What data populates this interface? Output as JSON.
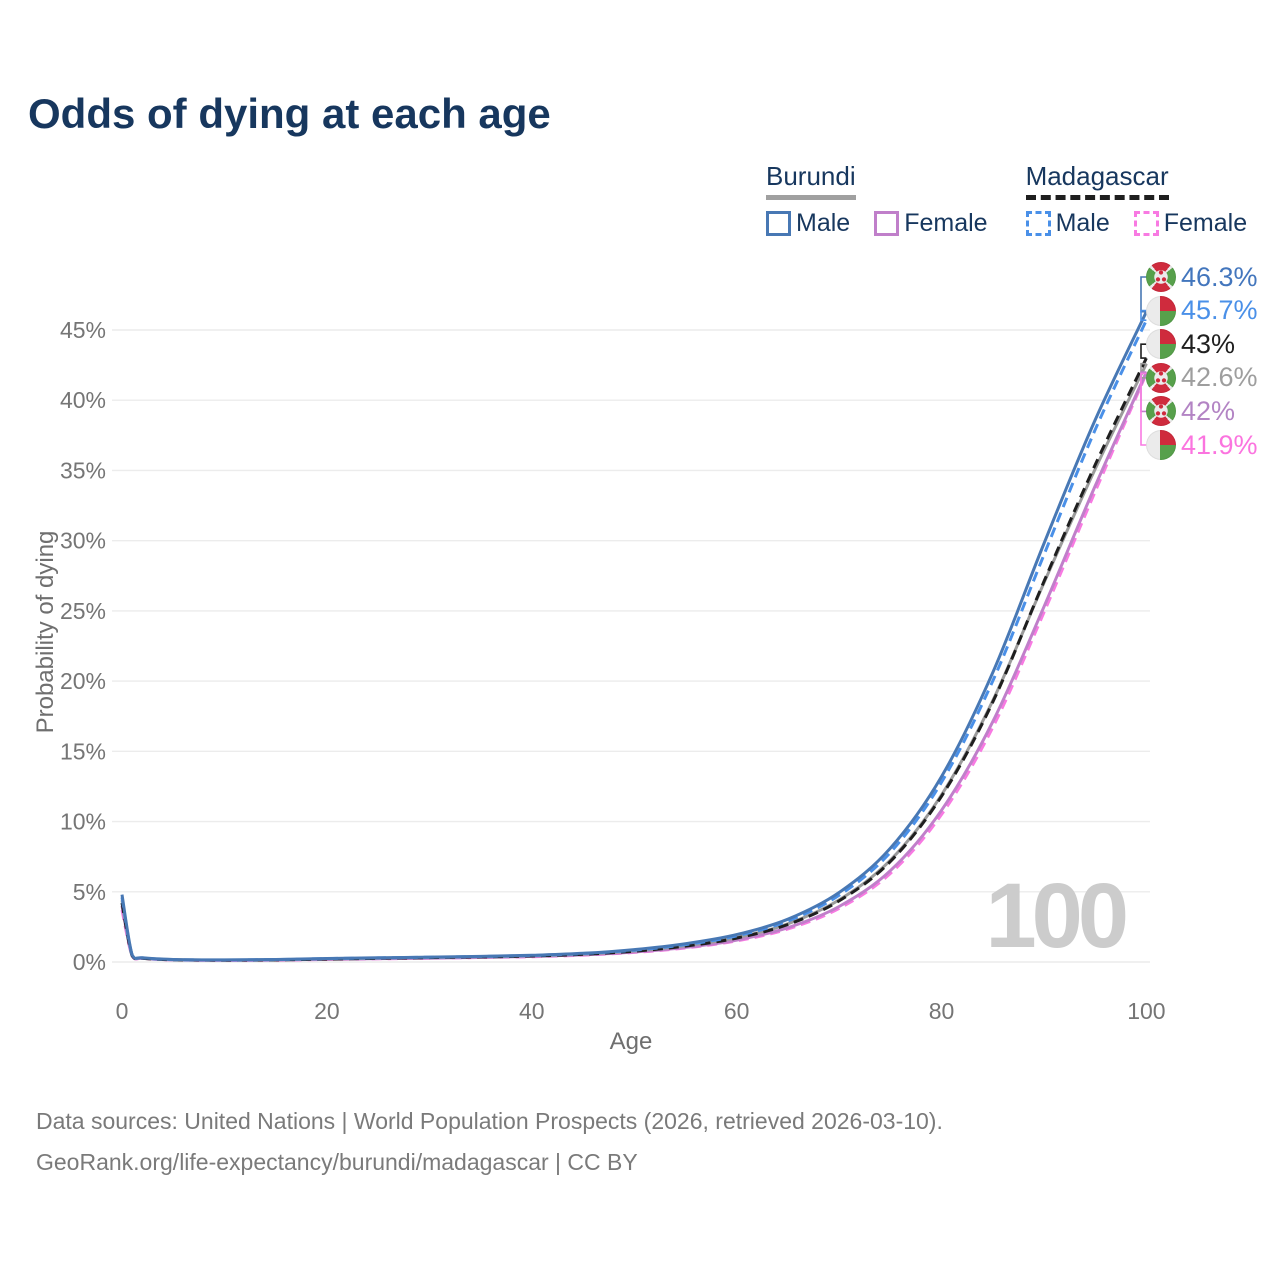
{
  "title": "Odds of dying at each age",
  "legend": {
    "groups": [
      {
        "country": "Burundi",
        "style": "solid",
        "items": [
          {
            "label": "Male",
            "color": "#4878b4"
          },
          {
            "label": "Female",
            "color": "#c07fca"
          }
        ]
      },
      {
        "country": "Madagascar",
        "style": "dashed",
        "items": [
          {
            "label": "Male",
            "color": "#4a90e8"
          },
          {
            "label": "Female",
            "color": "#f87ae2"
          }
        ]
      }
    ]
  },
  "chart_data": {
    "type": "line",
    "title": "Odds of dying at each age",
    "xlabel": "Age",
    "ylabel": "Probability of dying",
    "x_ticks": [
      0,
      20,
      40,
      60,
      80,
      100
    ],
    "y_ticks": [
      0,
      5,
      10,
      15,
      20,
      25,
      30,
      35,
      40,
      45
    ],
    "y_tick_suffix": "%",
    "xlim": [
      0,
      100
    ],
    "ylim": [
      0,
      47.5
    ],
    "grid": true,
    "legend_position": "top-right",
    "age_indicator": "100",
    "x": [
      0,
      1,
      2,
      5,
      10,
      15,
      20,
      25,
      30,
      35,
      40,
      45,
      50,
      55,
      60,
      65,
      70,
      75,
      80,
      85,
      90,
      95,
      100
    ],
    "series": [
      {
        "id": "burundi-male",
        "name": "Burundi Male",
        "country": "Burundi",
        "sex": "Male",
        "color": "#4878b4",
        "dash": "solid",
        "end_label": "46.3%",
        "label_color": "#4376bd",
        "flag": "burundi",
        "values": [
          4.8,
          0.5,
          0.3,
          0.18,
          0.15,
          0.18,
          0.25,
          0.3,
          0.35,
          0.4,
          0.48,
          0.62,
          0.88,
          1.3,
          1.95,
          3.05,
          4.95,
          8.1,
          13.2,
          20.6,
          29.8,
          38.6,
          46.3
        ]
      },
      {
        "id": "madagascar-male",
        "name": "Madagascar Male",
        "country": "Madagascar",
        "sex": "Male",
        "color": "#4a90e8",
        "dash": "dashed",
        "end_label": "45.7%",
        "label_color": "#4a90e8",
        "flag": "madagascar",
        "values": [
          4.6,
          0.48,
          0.29,
          0.17,
          0.14,
          0.17,
          0.24,
          0.29,
          0.34,
          0.39,
          0.46,
          0.6,
          0.84,
          1.24,
          1.86,
          2.92,
          4.75,
          7.8,
          12.8,
          20.0,
          29.0,
          37.9,
          45.7
        ]
      },
      {
        "id": "madagascar-overall",
        "name": "Madagascar",
        "country": "Madagascar",
        "sex": "Both",
        "color": "#1f1f1f",
        "dash": "dashed",
        "end_label": "43%",
        "label_color": "#1f1f1f",
        "flag": "madagascar",
        "values": [
          4.2,
          0.45,
          0.27,
          0.16,
          0.13,
          0.15,
          0.21,
          0.26,
          0.31,
          0.36,
          0.43,
          0.55,
          0.77,
          1.13,
          1.7,
          2.67,
          4.35,
          7.15,
          11.8,
          18.5,
          27.1,
          35.4,
          43.0
        ]
      },
      {
        "id": "burundi-overall",
        "name": "Burundi",
        "country": "Burundi",
        "sex": "Both",
        "color": "#9b9b9b",
        "dash": "solid",
        "end_label": "42.6%",
        "label_color": "#9e9e9e",
        "flag": "burundi",
        "values": [
          4.4,
          0.46,
          0.28,
          0.17,
          0.14,
          0.16,
          0.22,
          0.27,
          0.32,
          0.37,
          0.44,
          0.56,
          0.79,
          1.16,
          1.74,
          2.72,
          4.42,
          7.25,
          11.9,
          18.6,
          27.0,
          35.1,
          42.6
        ]
      },
      {
        "id": "burundi-female",
        "name": "Burundi Female",
        "country": "Burundi",
        "sex": "Female",
        "color": "#c07fca",
        "dash": "solid",
        "end_label": "42%",
        "label_color": "#b384c4",
        "flag": "burundi",
        "values": [
          4.0,
          0.43,
          0.26,
          0.15,
          0.12,
          0.14,
          0.19,
          0.24,
          0.28,
          0.33,
          0.4,
          0.51,
          0.71,
          1.04,
          1.56,
          2.44,
          3.95,
          6.5,
          10.8,
          17.1,
          25.3,
          33.9,
          42.0
        ]
      },
      {
        "id": "madagascar-female",
        "name": "Madagascar Female",
        "country": "Madagascar",
        "sex": "Female",
        "color": "#f87ae2",
        "dash": "dashed",
        "end_label": "41.9%",
        "label_color": "#fb74df",
        "flag": "madagascar",
        "values": [
          3.7,
          0.41,
          0.25,
          0.15,
          0.12,
          0.13,
          0.18,
          0.23,
          0.27,
          0.32,
          0.38,
          0.49,
          0.68,
          1.0,
          1.5,
          2.35,
          3.82,
          6.3,
          10.5,
          16.7,
          24.9,
          33.5,
          41.9
        ]
      }
    ]
  },
  "footer": {
    "line1": "Data sources: United Nations | World Population Prospects (2026, retrieved 2026-03-10).",
    "line2": "GeoRank.org/life-expectancy/burundi/madagascar | CC BY"
  }
}
